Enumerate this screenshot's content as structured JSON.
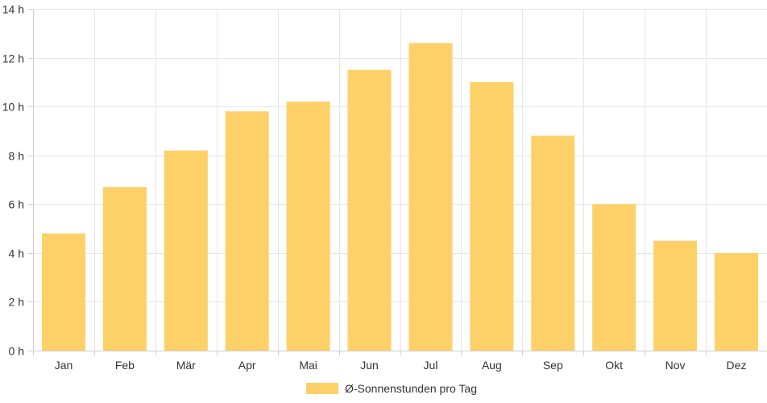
{
  "chart_data": {
    "type": "bar",
    "categories": [
      "Jan",
      "Feb",
      "Mär",
      "Apr",
      "Mai",
      "Jun",
      "Jul",
      "Aug",
      "Sep",
      "Okt",
      "Nov",
      "Dez"
    ],
    "series": [
      {
        "name": "Ø-Sonnenstunden pro Tag",
        "values": [
          4.8,
          6.7,
          8.2,
          9.8,
          10.2,
          11.5,
          12.6,
          11.0,
          8.8,
          6.0,
          4.5,
          4.0
        ]
      }
    ],
    "ylim": [
      0,
      14
    ],
    "yticks": [
      "0 h",
      "2 h",
      "4 h",
      "6 h",
      "8 h",
      "10 h",
      "12 h",
      "14 h"
    ],
    "ytick_values": [
      0,
      2,
      4,
      6,
      8,
      10,
      12,
      14
    ],
    "grid": true,
    "legend_position": "bottom",
    "bar_color": "#fdd167",
    "grid_color": "#e6e6e6"
  }
}
